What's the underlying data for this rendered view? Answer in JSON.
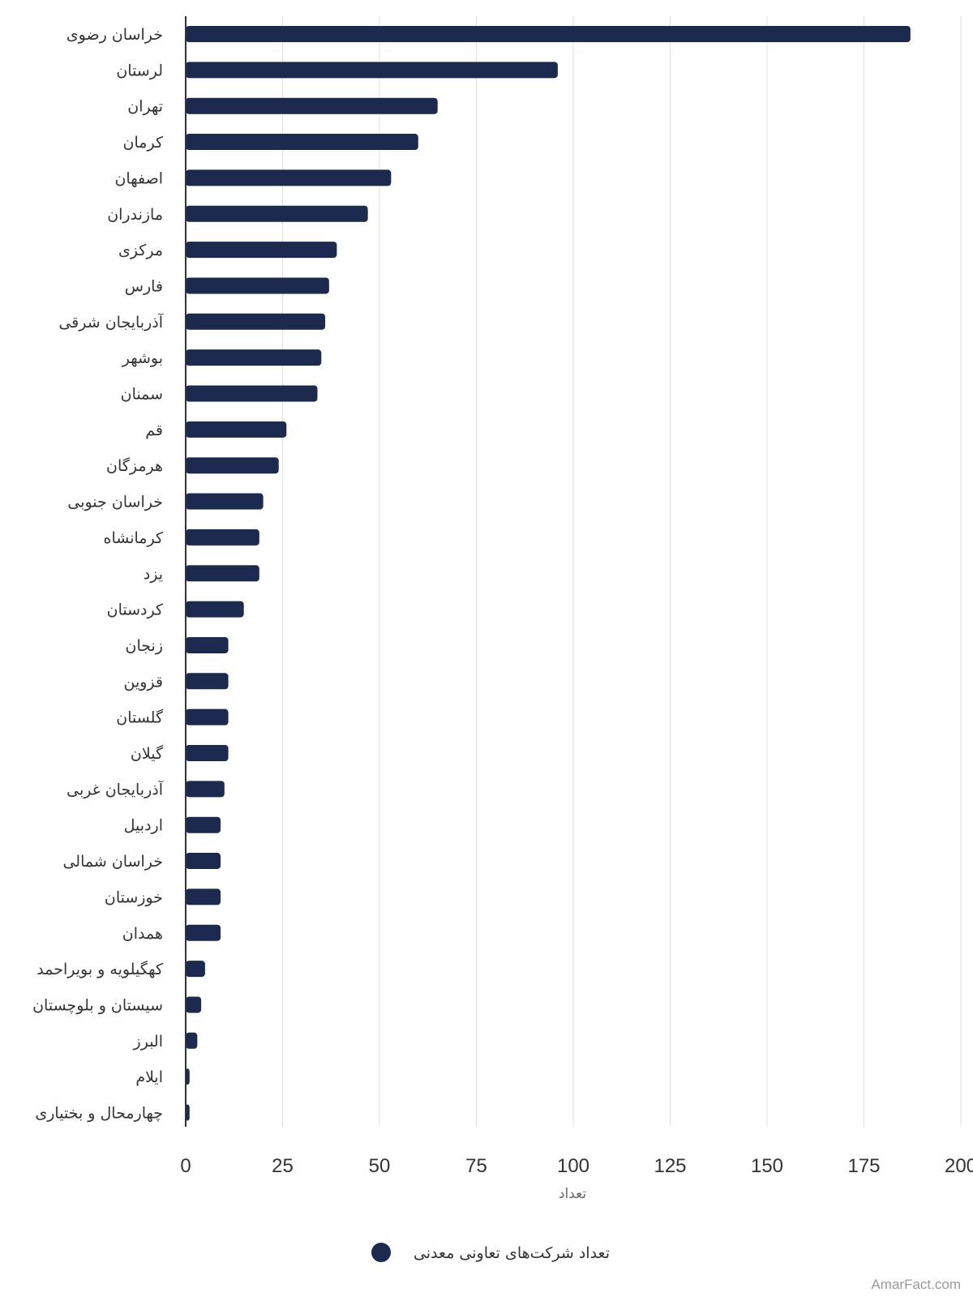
{
  "chart_data": {
    "type": "bar",
    "orientation": "horizontal",
    "categories": [
      "خراسان رضوی",
      "لرستان",
      "تهران",
      "کرمان",
      "اصفهان",
      "مازندران",
      "مرکزی",
      "فارس",
      "آذربایجان شرقی",
      "بوشهر",
      "سمنان",
      "قم",
      "هرمزگان",
      "خراسان جنوبی",
      "کرمانشاه",
      "یزد",
      "کردستان",
      "زنجان",
      "قزوین",
      "گلستان",
      "گیلان",
      "آذربایجان غربی",
      "اردبیل",
      "خراسان شمالی",
      "خوزستان",
      "همدان",
      "کهگیلویه و بویراحمد",
      "سیستان و بلوچستان",
      "البرز",
      "ایلام",
      "چهارمحال و بختیاری"
    ],
    "series": [
      {
        "name": "تعداد شرکت‌های تعاونی معدنی",
        "color": "#1b2a4e",
        "values": [
          187,
          96,
          65,
          60,
          53,
          47,
          39,
          37,
          36,
          35,
          34,
          26,
          24,
          20,
          19,
          19,
          15,
          11,
          11,
          11,
          11,
          10,
          9,
          9,
          9,
          9,
          5,
          4,
          3,
          1,
          1
        ]
      }
    ],
    "xlabel": "تعداد",
    "xlim": [
      0,
      200
    ],
    "xticks": [
      0,
      25,
      50,
      75,
      100,
      125,
      150,
      175,
      200
    ],
    "grid": true,
    "legend_position": "bottom"
  },
  "credit": "AmarFact.com"
}
